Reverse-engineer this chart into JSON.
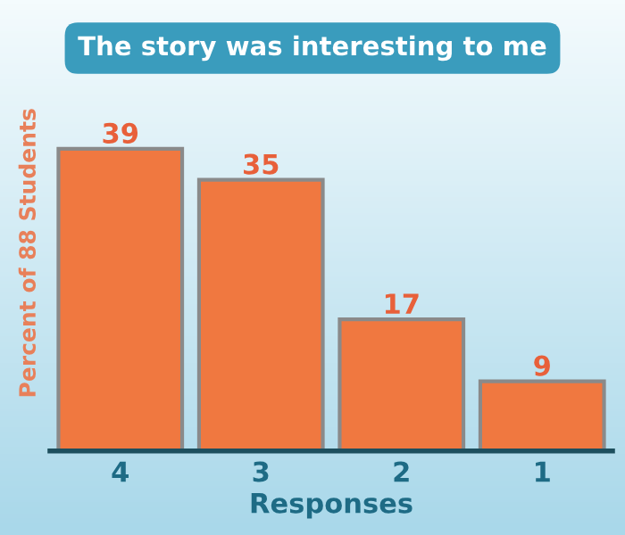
{
  "chart_data": {
    "type": "bar",
    "title": "The story was interesting to me",
    "xlabel": "Responses",
    "ylabel": "Percent of 88 Students",
    "categories": [
      "4",
      "3",
      "2",
      "1"
    ],
    "values": [
      39,
      35,
      17,
      9
    ],
    "color": "#f07840",
    "data_labels": true,
    "grid": false,
    "legend": false
  }
}
